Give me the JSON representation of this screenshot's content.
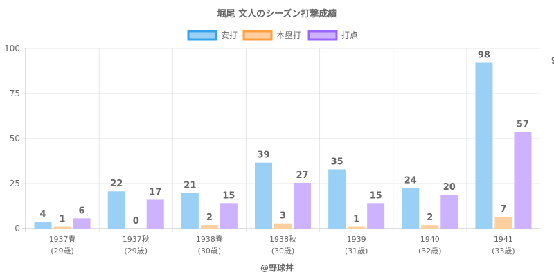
{
  "chart_data": {
    "type": "bar",
    "title": "堀尾 文人のシーズン打撃成績",
    "categories": [
      "1937春",
      "1937秋",
      "1938春",
      "1938秋",
      "1939",
      "1940",
      "1941"
    ],
    "sublabels": [
      "(29歳)",
      "(29歳)",
      "(30歳)",
      "(30歳)",
      "(31歳)",
      "(32歳)",
      "(33歳)"
    ],
    "series": [
      {
        "name": "安打",
        "values": [
          4,
          22,
          21,
          39,
          35,
          24,
          98
        ],
        "fill": "#9ad0f5",
        "stroke": "#36a2eb"
      },
      {
        "name": "本塁打",
        "values": [
          1,
          0,
          2,
          3,
          1,
          2,
          7
        ],
        "fill": "#ffcf9f",
        "stroke": "#ff9f40"
      },
      {
        "name": "打点",
        "values": [
          6,
          17,
          15,
          27,
          15,
          20,
          57
        ],
        "fill": "#ccb2ff",
        "stroke": "#9966ff"
      }
    ],
    "ylim": [
      0,
      100
    ],
    "yticks": [
      0,
      25,
      50,
      75,
      100
    ],
    "grid": true,
    "legend": "top",
    "xlabel": "@野球丼",
    "stray_label": "9"
  }
}
